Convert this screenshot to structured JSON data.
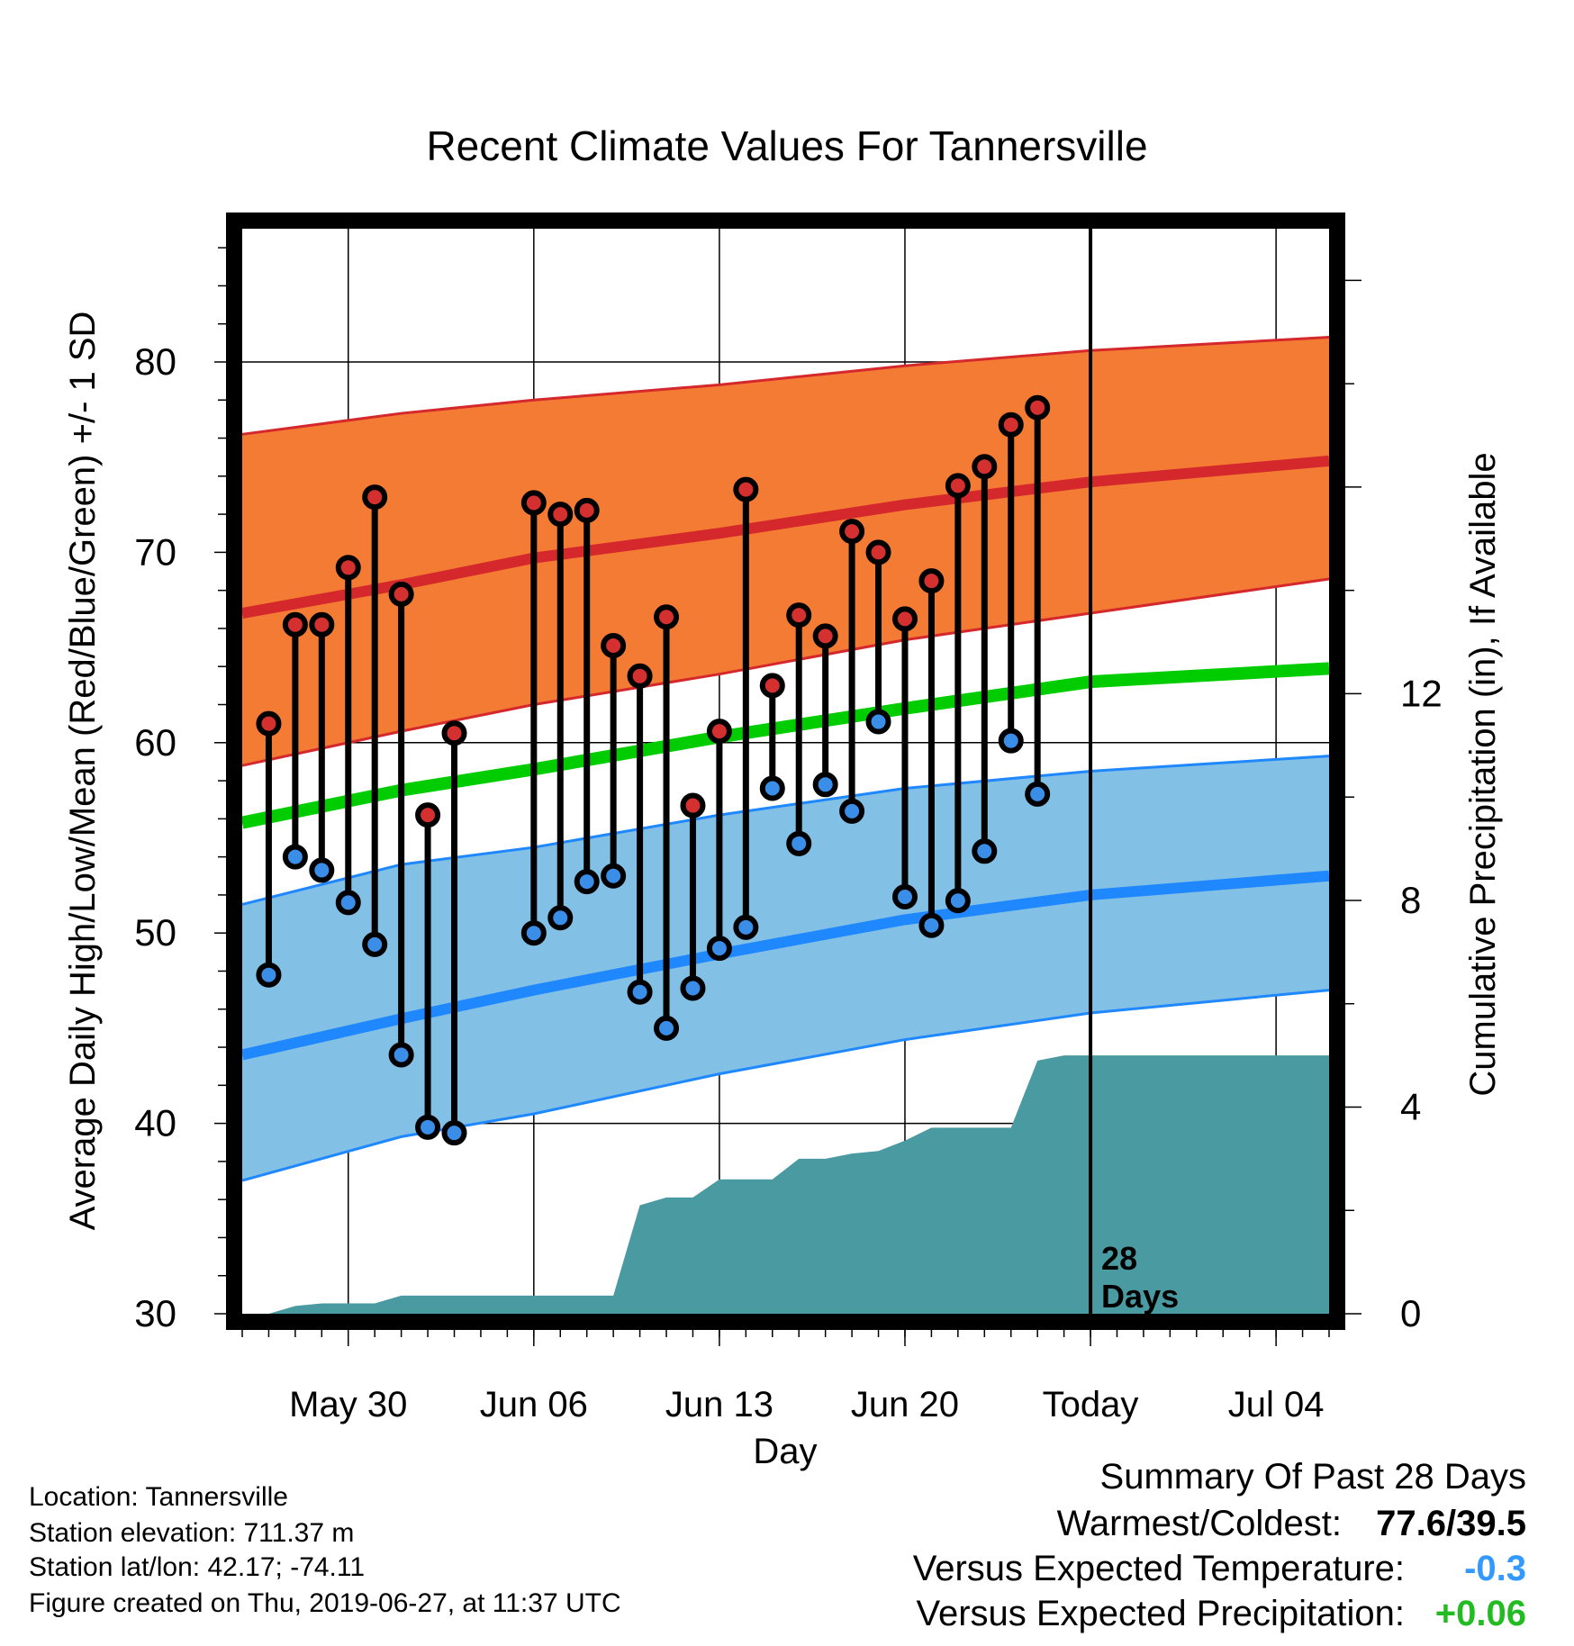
{
  "chart_data": {
    "type": "line",
    "title": "Recent Climate Values For Tannersville",
    "xlabel": "Day",
    "ylabel": "Average Daily High/Low/Mean (Red/Blue/Green) +/- 1 SD",
    "y2label": "Cumulative Precipitation (in), If Available",
    "xlim": [
      "2019-05-26",
      "2019-07-06"
    ],
    "ylim": [
      30,
      87
    ],
    "y2lim": [
      0,
      21
    ],
    "x_ticks": [
      "2019-05-30",
      "2019-06-06",
      "2019-06-13",
      "2019-06-20",
      "2019-06-27",
      "2019-07-04"
    ],
    "x_tick_labels": [
      "May 30",
      "Jun 06",
      "Jun 13",
      "Jun 20",
      "Today",
      "Jul 04"
    ],
    "y_ticks": [
      30,
      40,
      50,
      60,
      70,
      80
    ],
    "y2_ticks": [
      0,
      4,
      8,
      12
    ],
    "today_date": "2019-06-27",
    "today_annotation": [
      "28",
      "Days"
    ],
    "grid": true,
    "colors": {
      "high_band": "#f47b33",
      "high_line": "#d4282d",
      "low_band": "#82c0e5",
      "low_line": "#1f88ff",
      "mean_line": "#00cc00",
      "precip_fill": "#4a9aa2",
      "high_marker": "#d43030",
      "low_marker": "#3a8ee8",
      "temp_delta": "#3399ff",
      "precip_delta": "#22bb22"
    },
    "climatology": {
      "x": [
        "2019-05-26",
        "2019-06-01",
        "2019-06-06",
        "2019-06-13",
        "2019-06-20",
        "2019-06-27",
        "2019-07-06"
      ],
      "high_mean": [
        66.8,
        68.3,
        69.7,
        71.0,
        72.5,
        73.7,
        74.8
      ],
      "high_upper": [
        76.2,
        77.3,
        78.0,
        78.8,
        79.8,
        80.6,
        81.3
      ],
      "high_lower": [
        58.8,
        60.6,
        62.0,
        63.6,
        65.4,
        66.8,
        68.6
      ],
      "mean": [
        55.8,
        57.5,
        58.6,
        60.3,
        61.8,
        63.2,
        63.9
      ],
      "low_mean": [
        43.6,
        45.5,
        47.0,
        48.9,
        50.7,
        52.0,
        53.0
      ],
      "low_upper": [
        51.5,
        53.6,
        54.5,
        56.2,
        57.6,
        58.5,
        59.3
      ],
      "low_lower": [
        37.0,
        39.3,
        40.5,
        42.6,
        44.4,
        45.8,
        47.0
      ]
    },
    "observations": {
      "dates": [
        "2019-05-27",
        "2019-05-28",
        "2019-05-29",
        "2019-05-30",
        "2019-05-31",
        "2019-06-01",
        "2019-06-02",
        "2019-06-03",
        "2019-06-04",
        "2019-06-05",
        "2019-06-06",
        "2019-06-07",
        "2019-06-08",
        "2019-06-09",
        "2019-06-10",
        "2019-06-11",
        "2019-06-12",
        "2019-06-13",
        "2019-06-14",
        "2019-06-15",
        "2019-06-16",
        "2019-06-17",
        "2019-06-18",
        "2019-06-19",
        "2019-06-20",
        "2019-06-21",
        "2019-06-22",
        "2019-06-23",
        "2019-06-24",
        "2019-06-25",
        "2019-06-26"
      ],
      "high": [
        61.0,
        66.2,
        66.2,
        69.2,
        72.9,
        67.8,
        56.2,
        60.5,
        null,
        null,
        72.6,
        72.0,
        72.2,
        65.1,
        63.5,
        66.6,
        56.7,
        60.6,
        73.3,
        63.0,
        66.7,
        65.6,
        71.1,
        70.0,
        66.5,
        68.5,
        73.5,
        74.5,
        76.7,
        77.6,
        null
      ],
      "low": [
        47.8,
        54.0,
        53.3,
        51.6,
        49.4,
        43.6,
        39.8,
        39.5,
        null,
        null,
        50.0,
        50.8,
        52.7,
        53.0,
        46.9,
        45.0,
        47.1,
        49.2,
        50.3,
        57.6,
        54.7,
        57.8,
        56.4,
        61.1,
        51.9,
        50.4,
        51.7,
        54.3,
        60.1,
        57.3,
        null
      ]
    },
    "precipitation": {
      "dates": [
        "2019-05-26",
        "2019-05-27",
        "2019-05-28",
        "2019-05-29",
        "2019-05-31",
        "2019-06-01",
        "2019-06-09",
        "2019-06-10",
        "2019-06-11",
        "2019-06-12",
        "2019-06-13",
        "2019-06-15",
        "2019-06-16",
        "2019-06-17",
        "2019-06-18",
        "2019-06-19",
        "2019-06-20",
        "2019-06-21",
        "2019-06-24",
        "2019-06-25",
        "2019-06-26",
        "2019-07-06"
      ],
      "cumulative": [
        0,
        0,
        0.15,
        0.2,
        0.2,
        0.35,
        0.35,
        2.1,
        2.25,
        2.25,
        2.6,
        2.6,
        3.0,
        3.0,
        3.1,
        3.15,
        3.35,
        3.6,
        3.6,
        4.9,
        5.0,
        5.0
      ]
    }
  },
  "footer": {
    "location": "Location: Tannersville",
    "elevation": "Station elevation: 711.37 m",
    "latlon": "Station lat/lon: 42.17; -74.11",
    "created": "Figure created on Thu, 2019-06-27, at 11:37 UTC"
  },
  "summary": {
    "heading": "Summary Of Past 28 Days",
    "warm_cold_label": "Warmest/Coldest:",
    "warm_cold_value": "77.6/39.5",
    "temp_label": "Versus Expected Temperature:",
    "temp_value": "-0.3",
    "precip_label": "Versus Expected Precipitation:",
    "precip_value": "+0.06"
  }
}
